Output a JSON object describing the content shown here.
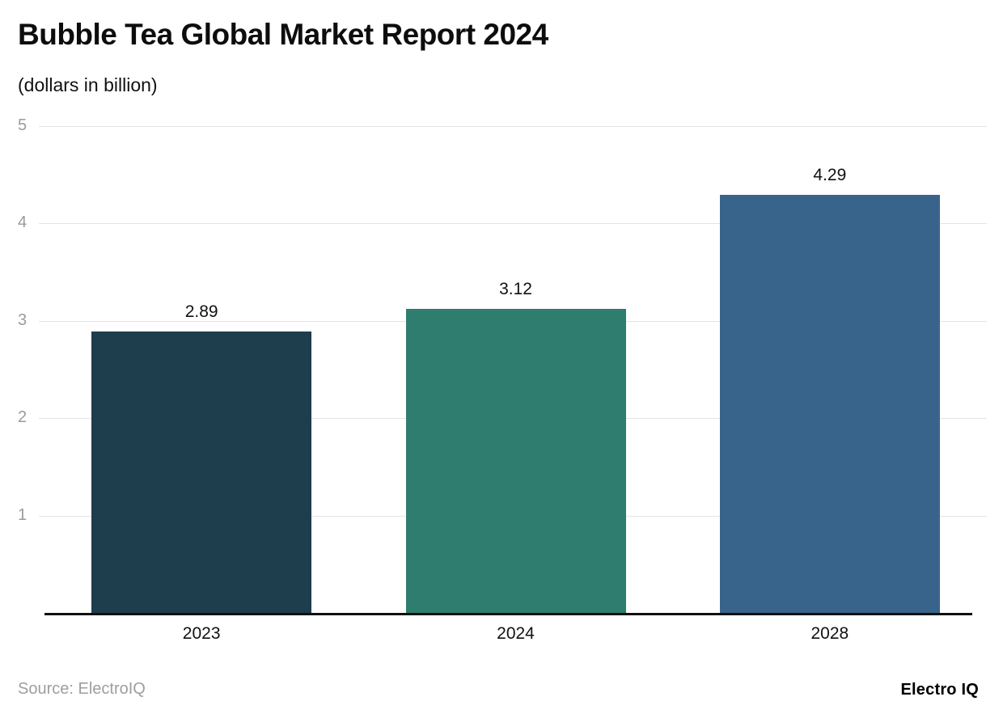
{
  "title": "Bubble Tea Global Market Report 2024",
  "subtitle": "(dollars in billion)",
  "chart_data": {
    "type": "bar",
    "categories": [
      "2023",
      "2024",
      "2028"
    ],
    "values": [
      2.89,
      3.12,
      4.29
    ],
    "value_labels": [
      "2.89",
      "3.12",
      "4.29"
    ],
    "title": "Bubble Tea Global Market Report 2024",
    "xlabel": "",
    "ylabel": "",
    "ylim": [
      0,
      5
    ],
    "yticks": [
      1,
      2,
      3,
      4,
      5
    ],
    "grid": true,
    "legend_position": "none",
    "bar_colors": [
      "#1e3d4d",
      "#2f7d6e",
      "#38648c"
    ],
    "gridline_color": "#e4e4e4",
    "axis_color": "#111111",
    "tick_label_color": "#9b9b9b"
  },
  "footer": {
    "source": "Source: ElectroIQ",
    "brand": "Electro IQ"
  }
}
